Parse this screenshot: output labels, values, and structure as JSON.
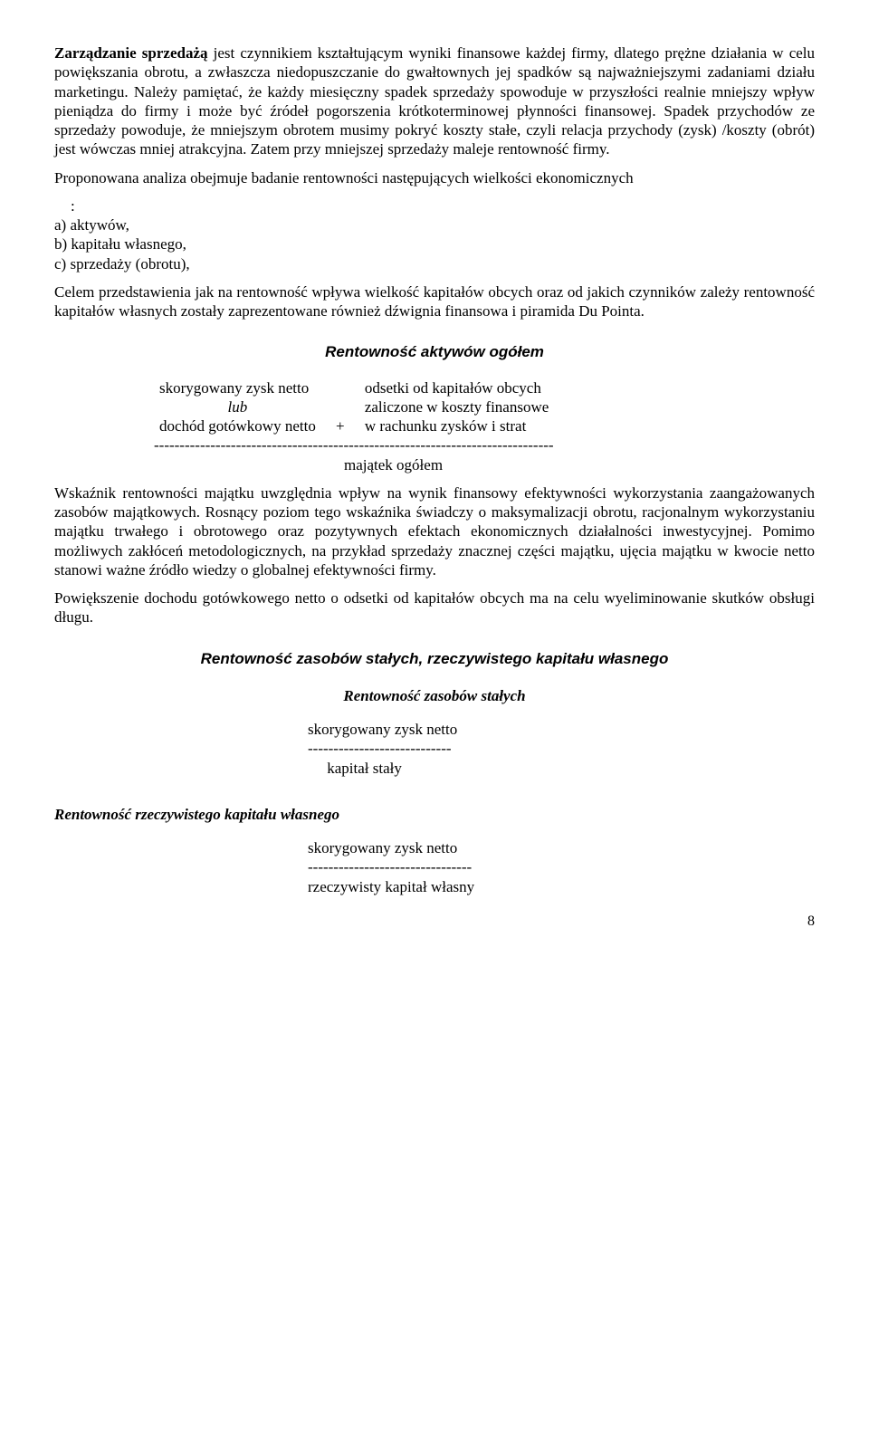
{
  "p1": {
    "lead": "Zarządzanie sprzedażą",
    "rest": " jest czynnikiem kształtującym wyniki finansowe każdej firmy, dlatego prężne działania w celu powiększania obrotu, a zwłaszcza niedopuszczanie do gwałtownych jej spadków są najważniejszymi zadaniami działu marketingu. Należy pamiętać, że każdy miesięczny spadek sprzedaży spowoduje w przyszłości realnie mniejszy wpływ pieniądza do firmy i może być źródeł pogorszenia krótkoterminowej płynności finansowej. Spadek przychodów ze sprzedaży powoduje, że mniejszym obrotem musimy pokryć koszty stałe, czyli relacja przychody (zysk) /koszty (obrót) jest wówczas mniej atrakcyjna. Zatem przy mniejszej sprzedaży maleje rentowność firmy."
  },
  "p2": "Proponowana analiza obejmuje badanie rentowności następujących wielkości ekonomicznych",
  "p2_colon": ":",
  "list": {
    "a": "a) aktywów,",
    "b": "b) kapitału własnego,",
    "c": "c) sprzedaży (obrotu),"
  },
  "p3": "Celem przedstawienia jak na rentowność wpływa wielkość kapitałów obcych oraz od jakich czynników zależy rentowność kapitałów własnych zostały zaprezentowane również dźwignia finansowa i piramida Du Pointa.",
  "s1_title": "Rentowność aktywów ogółem",
  "f1": {
    "l1a": "skorygowany zysk netto",
    "l1b": "odsetki od kapitałów obcych",
    "l2a_italic": "lub",
    "l2b": "zaliczone w koszty finansowe",
    "l3a": "dochód gotówkowy netto",
    "plus": "+",
    "l3b": "w rachunku zysków i strat",
    "rule": "------------------------------------------------------------------------------",
    "denom": "majątek ogółem"
  },
  "p4": "Wskaźnik rentowności majątku uwzględnia wpływ na wynik finansowy efektywności wykorzystania zaangażowanych zasobów majątkowych. Rosnący poziom tego wskaźnika świadczy o maksymalizacji obrotu, racjonalnym wykorzystaniu majątku trwałego i obrotowego oraz pozytywnych efektach ekonomicznych działalności inwestycyjnej. Pomimo możliwych zakłóceń metodologicznych, na przykład sprzedaży znacznej części majątku, ujęcia majątku         w kwocie netto stanowi ważne źródło wiedzy o globalnej efektywności firmy.",
  "p5": "Powiększenie dochodu gotówkowego netto o odsetki od kapitałów obcych ma na celu wyeliminowanie skutków obsługi długu.",
  "s2_title": "Rentowność zasobów stałych, rzeczywistego kapitału własnego",
  "s2a_title": "Rentowność zasobów stałych",
  "f2": {
    "num": "skorygowany zysk netto",
    "rule": "----------------------------",
    "denom": "     kapitał stały"
  },
  "s2b_title": "Rentowność rzeczywistego kapitału własnego",
  "f3": {
    "num": "skorygowany zysk netto",
    "rule": "--------------------------------",
    "denom": "rzeczywisty kapitał własny"
  },
  "page": "8"
}
